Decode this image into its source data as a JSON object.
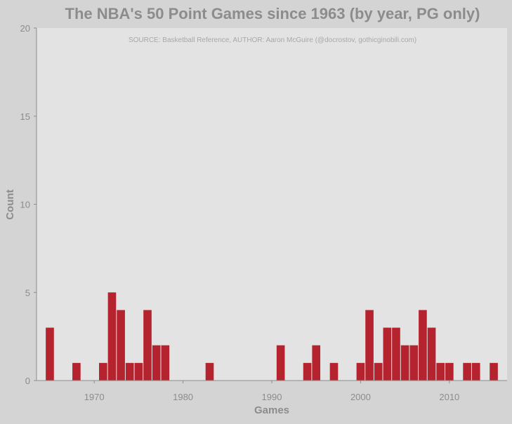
{
  "chart_data": {
    "type": "bar",
    "title": "The NBA's 50 Point Games since 1963 (by year, PG only)",
    "subtitle": "SOURCE: Basketball Reference, AUTHOR: Aaron McGuire (@docrostov, gothicginobili.com)",
    "xlabel": "Games",
    "ylabel": "Count",
    "xlim": [
      1963.5,
      2016.5
    ],
    "ylim": [
      0,
      20
    ],
    "xticks": [
      1970,
      1980,
      1990,
      2000,
      2010
    ],
    "yticks": [
      0,
      5,
      10,
      15,
      20
    ],
    "grid": false,
    "legend": "none",
    "bar_color": "#b5242e",
    "x": [
      1965,
      1968,
      1971,
      1972,
      1973,
      1974,
      1975,
      1976,
      1977,
      1978,
      1983,
      1991,
      1994,
      1995,
      1997,
      2000,
      2001,
      2002,
      2003,
      2004,
      2005,
      2006,
      2007,
      2008,
      2009,
      2010,
      2012,
      2013,
      2015
    ],
    "values": [
      3,
      1,
      1,
      5,
      4,
      1,
      1,
      4,
      2,
      2,
      1,
      2,
      1,
      2,
      1,
      1,
      4,
      1,
      3,
      3,
      2,
      2,
      4,
      3,
      1,
      1,
      1,
      1,
      1
    ]
  }
}
